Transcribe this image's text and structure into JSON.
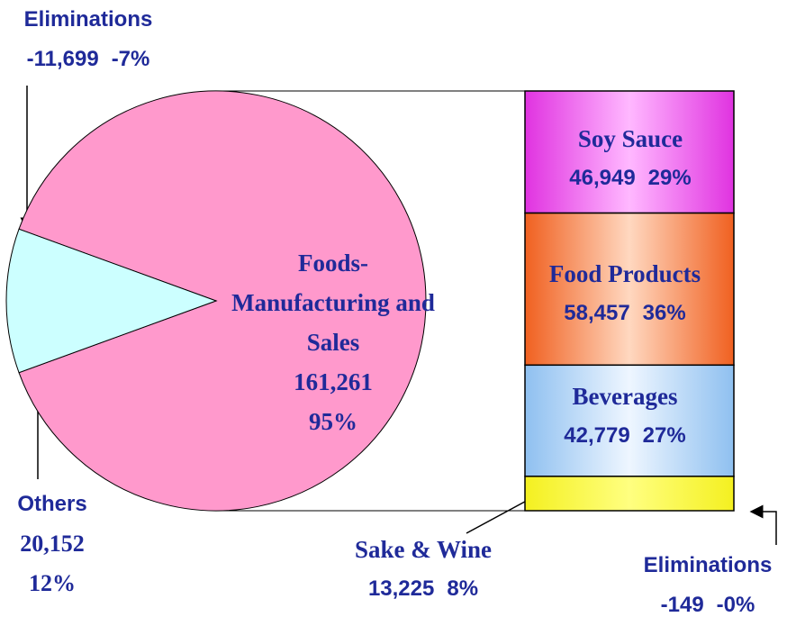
{
  "chart_data": [
    {
      "type": "pie",
      "categories": [
        "Foods-Manufacturing and Sales",
        "Others",
        "Eliminations"
      ],
      "values": [
        161261,
        20152,
        -11699
      ],
      "value_labels": [
        "161,261",
        "20,152",
        "-11,699"
      ],
      "shares": [
        95,
        12,
        -7
      ],
      "share_labels": [
        "95%",
        "12%",
        "-7%"
      ],
      "colors": [
        "#ff99cc",
        "#ccffff",
        null
      ]
    },
    {
      "type": "stacked-bar",
      "categories": [
        "Soy Sauce",
        "Food Products",
        "Beverages",
        "Sake & Wine",
        "Eliminations"
      ],
      "values": [
        46949,
        58457,
        42779,
        13225,
        -149
      ],
      "value_labels": [
        "46,949",
        "58,457",
        "42,779",
        "13,225",
        "-149"
      ],
      "shares": [
        29,
        36,
        27,
        8,
        -0.1
      ],
      "share_labels": [
        "29%",
        "36%",
        "27%",
        "8%",
        "-0%"
      ],
      "colors": [
        [
          "#e033e0",
          "#ffb8ff"
        ],
        [
          "#f06020",
          "#ffd8c0"
        ],
        [
          "#8fc0f0",
          "#eef6ff"
        ],
        [
          "#f4f020",
          "#ffff80"
        ],
        null
      ]
    }
  ]
}
